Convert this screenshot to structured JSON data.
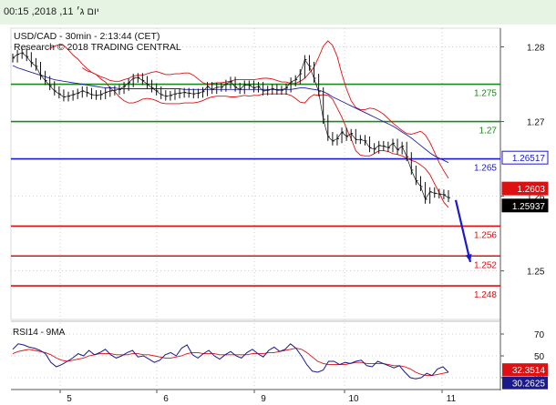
{
  "header": {
    "datetime": "יום ג׳ 11, 2018, 00:15"
  },
  "chart_data": [
    {
      "type": "line",
      "title": "USD/CAD - 30min - 2:13:44 (CET)",
      "subtitle": "Research © 2018 TRADING CENTRAL",
      "ylim": [
        1.2435,
        1.2825
      ],
      "yticks": [
        1.25,
        1.26,
        1.27,
        1.28
      ],
      "ytick_labels": [
        "1.25",
        "1.26",
        "1.27",
        "1.28"
      ],
      "x_labels": [
        "5",
        "6",
        "9",
        "10",
        "11"
      ],
      "price": [
        1.2785,
        1.279,
        1.2792,
        1.2787,
        1.2779,
        1.2774,
        1.2762,
        1.2755,
        1.2748,
        1.2741,
        1.2737,
        1.2733,
        1.2734,
        1.2736,
        1.2738,
        1.2741,
        1.2739,
        1.2736,
        1.2735,
        1.2736,
        1.2739,
        1.2741,
        1.2742,
        1.2743,
        1.2747,
        1.2752,
        1.2758,
        1.2759,
        1.2755,
        1.275,
        1.2745,
        1.2741,
        1.2736,
        1.2734,
        1.2735,
        1.2737,
        1.2738,
        1.2739,
        1.2738,
        1.2737,
        1.2738,
        1.274,
        1.2747,
        1.2743,
        1.2746,
        1.2746,
        1.275,
        1.2754,
        1.2746,
        1.2743,
        1.2749,
        1.2749,
        1.2745,
        1.2747,
        1.2741,
        1.2742,
        1.2744,
        1.2742,
        1.2742,
        1.2745,
        1.2753,
        1.2756,
        1.2764,
        1.2783,
        1.2774,
        1.2758,
        1.274,
        1.2703,
        1.268,
        1.2674,
        1.2677,
        1.2686,
        1.268,
        1.2684,
        1.2676,
        1.2676,
        1.2674,
        1.2665,
        1.2663,
        1.2668,
        1.2667,
        1.2665,
        1.2671,
        1.2662,
        1.2667,
        1.2653,
        1.2635,
        1.2621,
        1.2613,
        1.2596,
        1.2606,
        1.2604,
        1.2603,
        1.2602,
        1.2598
      ],
      "ma": [
        1.2775,
        1.2772,
        1.277,
        1.2768,
        1.2766,
        1.2764,
        1.2762,
        1.276,
        1.2758,
        1.2756,
        1.2755,
        1.2754,
        1.2753,
        1.2752,
        1.2751,
        1.275,
        1.2749,
        1.2748,
        1.2747,
        1.2746,
        1.2745,
        1.2745,
        1.2745,
        1.2744,
        1.2744,
        1.2744,
        1.2744,
        1.2744,
        1.2744,
        1.2744,
        1.2744,
        1.2744,
        1.2744,
        1.2744,
        1.2744,
        1.2744,
        1.2744,
        1.2743,
        1.2743,
        1.2743,
        1.2743,
        1.2743,
        1.2743,
        1.2743,
        1.2743,
        1.2743,
        1.2743,
        1.2743,
        1.2743,
        1.2743,
        1.2743,
        1.2743,
        1.2743,
        1.2743,
        1.2743,
        1.2743,
        1.2743,
        1.2743,
        1.2743,
        1.2743,
        1.2743,
        1.2744,
        1.2745,
        1.2745,
        1.2744,
        1.2743,
        1.2742,
        1.274,
        1.2737,
        1.2733,
        1.273,
        1.2727,
        1.2724,
        1.2721,
        1.2718,
        1.2715,
        1.2712,
        1.2709,
        1.2706,
        1.2703,
        1.27,
        1.2697,
        1.2694,
        1.269,
        1.2686,
        1.2682,
        1.2678,
        1.2673,
        1.2668,
        1.2663,
        1.2658,
        1.2654,
        1.2651,
        1.2648,
        1.2645
      ],
      "band_upper": [
        1.2798,
        1.2801,
        1.2803,
        1.2802,
        1.2796,
        1.2789,
        1.2784,
        1.2777,
        1.2771,
        1.2766,
        1.2763,
        1.276,
        1.2758,
        1.2755,
        1.2754,
        1.2754,
        1.2756,
        1.2758,
        1.2761,
        1.2762,
        1.2762,
        1.2764,
        1.2766,
        1.2767,
        1.2765,
        1.2763,
        1.2763,
        1.2764,
        1.2764,
        1.2765,
        1.2765,
        1.2762,
        1.2757,
        1.2752,
        1.275,
        1.2751,
        1.2752,
        1.2752,
        1.2753,
        1.2754,
        1.2756,
        1.2756,
        1.2756,
        1.2756,
        1.2756,
        1.2757,
        1.2758,
        1.2758,
        1.2757,
        1.2755,
        1.2753,
        1.2753,
        1.2751,
        1.2751,
        1.2754,
        1.2758,
        1.2765,
        1.2773,
        1.2786,
        1.2801,
        1.2808,
        1.2802,
        1.2787,
        1.2764,
        1.2744,
        1.2728,
        1.2719,
        1.2716,
        1.2716,
        1.2718,
        1.2717,
        1.2714,
        1.271,
        1.2704,
        1.2698,
        1.2693,
        1.2688,
        1.2684,
        1.2683,
        1.2685,
        1.2687,
        1.2682,
        1.2672,
        1.2659,
        1.2645,
        1.2634,
        1.2624
      ],
      "band_lower": [
        1.2772,
        1.2768,
        1.2766,
        1.2763,
        1.2757,
        1.2753,
        1.2745,
        1.274,
        1.2733,
        1.2728,
        1.2725,
        1.2725,
        1.2727,
        1.273,
        1.2731,
        1.273,
        1.2728,
        1.2725,
        1.2724,
        1.2724,
        1.2724,
        1.2724,
        1.2725,
        1.2725,
        1.2725,
        1.2726,
        1.2728,
        1.2731,
        1.2733,
        1.2734,
        1.2734,
        1.2734,
        1.2733,
        1.2733,
        1.2734,
        1.2735,
        1.2734,
        1.2735,
        1.2735,
        1.2737,
        1.2737,
        1.2737,
        1.2737,
        1.2737,
        1.2737,
        1.2735,
        1.2731,
        1.2726,
        1.2725,
        1.2732,
        1.2736,
        1.2735,
        1.2736,
        1.2735,
        1.273,
        1.2718,
        1.2706,
        1.2691,
        1.2677,
        1.2661,
        1.2655,
        1.2654,
        1.2654,
        1.2657,
        1.2661,
        1.2661,
        1.266,
        1.2657,
        1.2656,
        1.2654,
        1.2651,
        1.2648,
        1.2646,
        1.2642,
        1.2637,
        1.2629,
        1.2617,
        1.2605,
        1.2592,
        1.2585
      ],
      "levels": [
        {
          "value": 1.275,
          "label": "1.275",
          "color": "#1a8a1a"
        },
        {
          "value": 1.27,
          "label": "1.27",
          "color": "#1a8a1a"
        },
        {
          "value": 1.265,
          "label": "1.265",
          "color": "#1a1acc"
        },
        {
          "value": 1.256,
          "label": "1.256",
          "color": "#dd1111"
        },
        {
          "value": 1.252,
          "label": "1.252",
          "color": "#dd1111"
        },
        {
          "value": 1.248,
          "label": "1.248",
          "color": "#dd1111"
        }
      ],
      "badges": [
        {
          "value": 1.26517,
          "label": "1.26517",
          "bg": "#ffffff",
          "fg": "#1a1acc",
          "border": "#1a1acc"
        },
        {
          "value": 1.2603,
          "label": "1.2603",
          "bg": "#dd1111",
          "fg": "#ffffff",
          "border": "#dd1111"
        },
        {
          "value": 1.25937,
          "label": "1.25937",
          "bg": "#000000",
          "fg": "#ffffff",
          "border": "#000000"
        }
      ],
      "forecast_arrow": {
        "from": 1.2595,
        "to": 1.2512,
        "color": "#1a1acc"
      },
      "colors": {
        "price": "#111111",
        "ma": "#2020aa",
        "bands": "#dd1111"
      }
    },
    {
      "type": "line",
      "title": "RSI14 - 9MA",
      "ylim": [
        20,
        80
      ],
      "yticks": [
        30,
        50,
        70
      ],
      "ytick_labels": [
        "30",
        "50",
        "70"
      ],
      "rsi": [
        56,
        61,
        60,
        58,
        57,
        55,
        52,
        44,
        40,
        42,
        45,
        48,
        52,
        50,
        55,
        51,
        53,
        56,
        51,
        48,
        50,
        53,
        55,
        49,
        50,
        47,
        44,
        46,
        51,
        53,
        50,
        57,
        60,
        51,
        48,
        52,
        55,
        50,
        47,
        51,
        54,
        50,
        48,
        53,
        56,
        52,
        49,
        55,
        58,
        54,
        56,
        61,
        57,
        50,
        42,
        36,
        35,
        37,
        45,
        45,
        42,
        44,
        43,
        45,
        46,
        41,
        40,
        45,
        43,
        41,
        39,
        41,
        35,
        30,
        29,
        30,
        34,
        32,
        38,
        40,
        35
      ],
      "rsi_ma": [
        52,
        54,
        55,
        56,
        55,
        54,
        53,
        51,
        48,
        46,
        45,
        46,
        47,
        48,
        50,
        51,
        52,
        52,
        52,
        51,
        51,
        51,
        52,
        52,
        51,
        51,
        50,
        49,
        48,
        48,
        49,
        50,
        52,
        53,
        53,
        52,
        52,
        52,
        51,
        51,
        51,
        51,
        51,
        51,
        52,
        52,
        52,
        53,
        53,
        54,
        55,
        56,
        57,
        56,
        53,
        49,
        45,
        43,
        42,
        42,
        42,
        42,
        43,
        44,
        44,
        43,
        43,
        43,
        43,
        42,
        41,
        41,
        40,
        38,
        35,
        33,
        32,
        32,
        33,
        34,
        35
      ],
      "badges": [
        {
          "value": 32.3514,
          "label": "32.3514",
          "bg": "#dd1111",
          "fg": "#ffffff"
        },
        {
          "value": 30.2625,
          "label": "30.2625",
          "bg": "#1a1a88",
          "fg": "#ffffff"
        }
      ],
      "colors": {
        "rsi": "#1a1a88",
        "ma": "#dd1111"
      }
    }
  ]
}
